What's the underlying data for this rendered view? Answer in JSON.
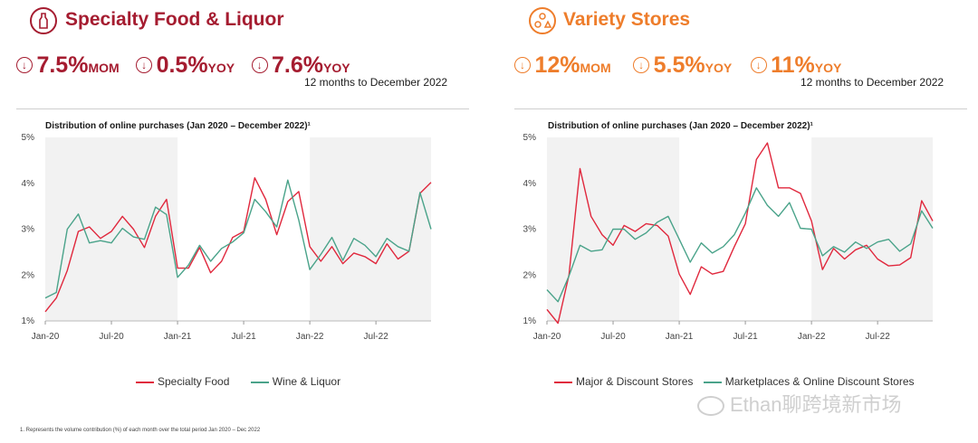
{
  "colors": {
    "left_accent": "#a51c30",
    "right_accent": "#ee7d2b",
    "series_red": "#e0283d",
    "series_green": "#4aa38a",
    "shade": "#f2f2f2"
  },
  "left": {
    "icon": "bottle-icon",
    "title": "Specialty Food & Liquor",
    "stats": [
      {
        "icon": "arrow-down-icon",
        "value": "7.5%",
        "label": "MOM"
      },
      {
        "icon": "arrow-down-icon",
        "value": "0.5%",
        "label": "YOY"
      },
      {
        "icon": "arrow-down-icon",
        "value": "7.6%",
        "label": "YOY"
      }
    ],
    "period_note": "12 months to December 2022",
    "chart_title": "Distribution of online purchases (Jan 2020 – December 2022)¹"
  },
  "right": {
    "icon": "shapes-icon",
    "title": "Variety Stores",
    "stats": [
      {
        "icon": "arrow-down-icon",
        "value": "12%",
        "label": "MOM"
      },
      {
        "icon": "arrow-down-icon",
        "value": "5.5%",
        "label": "YOY"
      },
      {
        "icon": "arrow-down-icon",
        "value": "11%",
        "label": "YOY"
      }
    ],
    "period_note": "12 months to December 2022",
    "chart_title": "Distribution of online purchases (Jan 2020 – December 2022)¹"
  },
  "footnote": "1. Represents the volume contribution (%) of each month over the total period Jan 2020 – Dec 2022",
  "watermark": "Ethan聊跨境新市场",
  "chart_data": [
    {
      "type": "line",
      "title": "Distribution of online purchases (Jan 2020 – December 2022)¹",
      "ylim": [
        1,
        5
      ],
      "yticks": [
        "1%",
        "2%",
        "3%",
        "4%",
        "5%"
      ],
      "xtick_labels": [
        "Jan-20",
        "Jul-20",
        "Jan-21",
        "Jul-21",
        "Jan-22",
        "Jul-22"
      ],
      "xtick_index": [
        0,
        6,
        12,
        18,
        24,
        30
      ],
      "shaded_ranges": [
        [
          0,
          12
        ],
        [
          24,
          35
        ]
      ],
      "series": [
        {
          "name": "Specialty Food",
          "color": "#e0283d",
          "values": [
            1.2,
            1.5,
            2.1,
            2.95,
            3.05,
            2.8,
            2.95,
            3.28,
            3.0,
            2.6,
            3.28,
            3.65,
            2.15,
            2.15,
            2.6,
            2.05,
            2.3,
            2.82,
            2.95,
            4.12,
            3.65,
            2.88,
            3.6,
            3.82,
            2.62,
            2.3,
            2.62,
            2.25,
            2.48,
            2.4,
            2.25,
            2.68,
            2.35,
            2.52,
            3.78,
            4.02
          ]
        },
        {
          "name": "Wine & Liquor",
          "color": "#4aa38a",
          "values": [
            1.5,
            1.62,
            3.0,
            3.33,
            2.7,
            2.75,
            2.7,
            3.02,
            2.83,
            2.78,
            3.48,
            3.32,
            1.95,
            2.22,
            2.65,
            2.3,
            2.58,
            2.72,
            2.92,
            3.65,
            3.38,
            3.05,
            4.07,
            3.2,
            2.12,
            2.45,
            2.82,
            2.32,
            2.8,
            2.65,
            2.4,
            2.8,
            2.62,
            2.52,
            3.8,
            3.0
          ]
        }
      ]
    },
    {
      "type": "line",
      "title": "Distribution of online purchases (Jan 2020 – December 2022)¹",
      "ylim": [
        1,
        5
      ],
      "yticks": [
        "1%",
        "2%",
        "3%",
        "4%",
        "5%"
      ],
      "xtick_labels": [
        "Jan-20",
        "Jul-20",
        "Jan-21",
        "Jul-21",
        "Jan-22",
        "Jul-22"
      ],
      "xtick_index": [
        0,
        6,
        12,
        18,
        24,
        30
      ],
      "shaded_ranges": [
        [
          0,
          12
        ],
        [
          24,
          35
        ]
      ],
      "series": [
        {
          "name": "Major & Discount Stores",
          "color": "#e0283d",
          "values": [
            1.25,
            0.95,
            2.0,
            4.32,
            3.28,
            2.88,
            2.65,
            3.08,
            2.95,
            3.12,
            3.08,
            2.85,
            2.02,
            1.58,
            2.18,
            2.02,
            2.08,
            2.62,
            3.12,
            4.52,
            4.88,
            3.9,
            3.9,
            3.78,
            3.18,
            2.12,
            2.58,
            2.35,
            2.55,
            2.65,
            2.35,
            2.2,
            2.22,
            2.38,
            3.62,
            3.18
          ]
        },
        {
          "name": "Marketplaces & Online Discount Stores",
          "color": "#4aa38a",
          "values": [
            1.68,
            1.42,
            1.98,
            2.65,
            2.52,
            2.55,
            3.0,
            3.0,
            2.78,
            2.92,
            3.15,
            3.28,
            2.78,
            2.28,
            2.7,
            2.48,
            2.62,
            2.88,
            3.35,
            3.9,
            3.52,
            3.28,
            3.58,
            3.02,
            3.0,
            2.42,
            2.62,
            2.5,
            2.72,
            2.58,
            2.72,
            2.78,
            2.52,
            2.68,
            3.4,
            3.02
          ]
        }
      ]
    }
  ]
}
